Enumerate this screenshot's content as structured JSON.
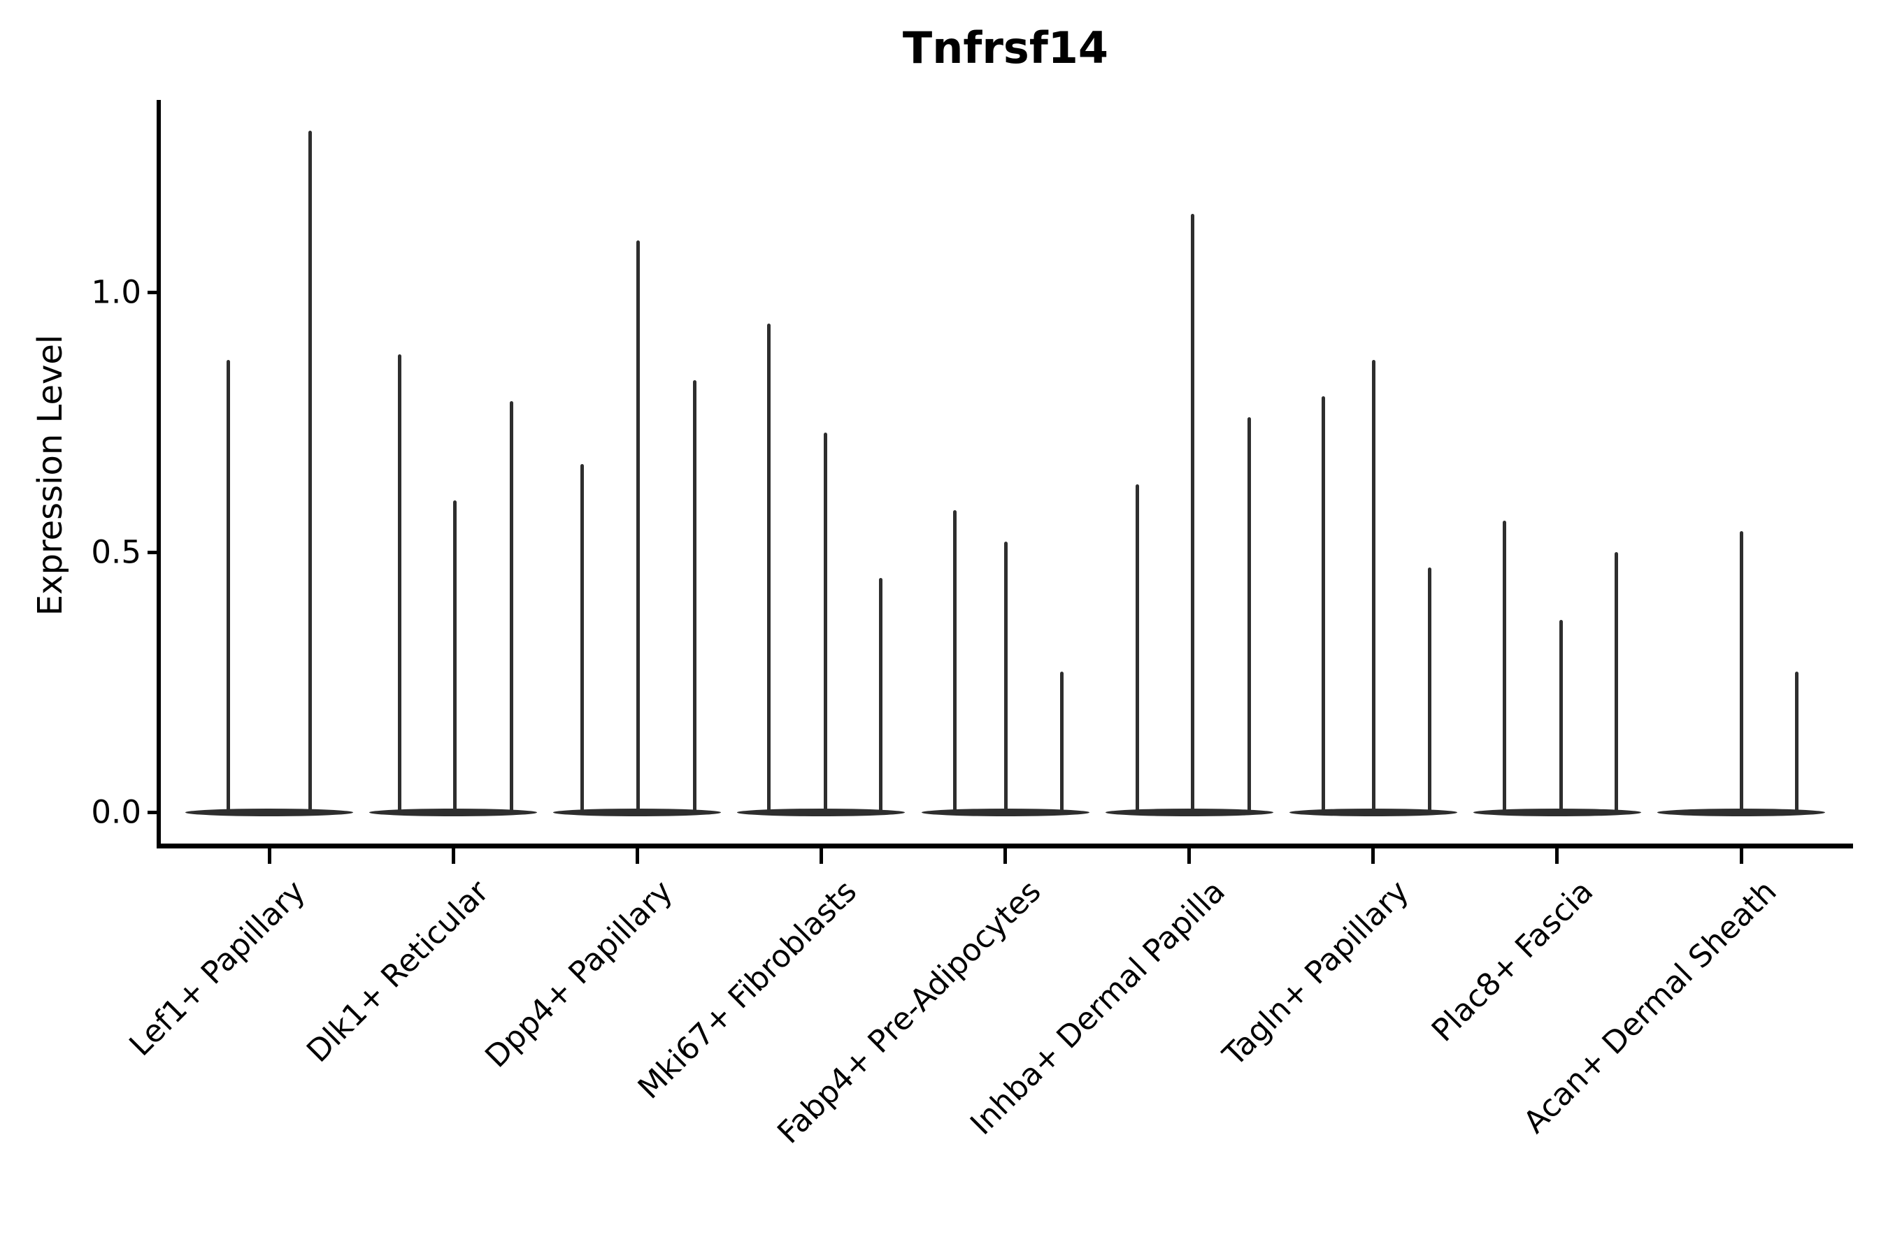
{
  "figure": {
    "title": "Tnfrsf14",
    "background_color": "#ffffff",
    "axis_color": "#000000",
    "violin_color": "#2e2e2e"
  },
  "chart_data": {
    "type": "violin",
    "title": "Tnfrsf14",
    "xlabel": "",
    "ylabel": "Expression Level",
    "ylim": [
      -0.065,
      1.37
    ],
    "grid": false,
    "legend": "none",
    "yticks": [
      {
        "label": "0.0",
        "value": 0.0
      },
      {
        "label": "0.5",
        "value": 0.5
      },
      {
        "label": "1.0",
        "value": 1.0
      }
    ],
    "categories": [
      "Lef1+ Papillary",
      "Dlk1+ Reticular",
      "Dpp4+ Papillary",
      "Mki67+ Fibroblasts",
      "Fabp4+ Pre-Adipocytes",
      "Inhba+ Dermal Papilla",
      "Tagln+ Papillary",
      "Plac8+ Fascia",
      "Acan+ Dermal Sheath"
    ],
    "series": [
      {
        "category": "Lef1+ Papillary",
        "base_value": 0.0,
        "spikes": [
          {
            "offset": -59,
            "value": 0.87
          },
          {
            "offset": 58,
            "value": 1.31
          }
        ]
      },
      {
        "category": "Dlk1+ Reticular",
        "base_value": 0.0,
        "spikes": [
          {
            "offset": -77,
            "value": 0.88
          },
          {
            "offset": 2,
            "value": 0.6
          },
          {
            "offset": 83,
            "value": 0.79
          }
        ]
      },
      {
        "category": "Dpp4+ Papillary",
        "base_value": 0.0,
        "spikes": [
          {
            "offset": -79,
            "value": 0.67
          },
          {
            "offset": 1,
            "value": 1.1
          },
          {
            "offset": 82,
            "value": 0.83
          }
        ]
      },
      {
        "category": "Mki67+ Fibroblasts",
        "base_value": 0.0,
        "spikes": [
          {
            "offset": -75,
            "value": 0.94
          },
          {
            "offset": 6,
            "value": 0.73
          },
          {
            "offset": 85,
            "value": 0.45
          }
        ]
      },
      {
        "category": "Fabp4+ Pre-Adipocytes",
        "base_value": 0.0,
        "spikes": [
          {
            "offset": -72,
            "value": 0.58
          },
          {
            "offset": 1,
            "value": 0.52
          },
          {
            "offset": 81,
            "value": 0.27
          }
        ]
      },
      {
        "category": "Inhba+ Dermal Papilla",
        "base_value": 0.0,
        "spikes": [
          {
            "offset": -74,
            "value": 0.63
          },
          {
            "offset": 5,
            "value": 1.15
          },
          {
            "offset": 86,
            "value": 0.76
          }
        ]
      },
      {
        "category": "Tagln+ Papillary",
        "base_value": 0.0,
        "spikes": [
          {
            "offset": -71,
            "value": 0.8
          },
          {
            "offset": 1,
            "value": 0.87
          },
          {
            "offset": 81,
            "value": 0.47
          }
        ]
      },
      {
        "category": "Plac8+ Fascia",
        "base_value": 0.0,
        "spikes": [
          {
            "offset": -75,
            "value": 0.56
          },
          {
            "offset": 6,
            "value": 0.37
          },
          {
            "offset": 85,
            "value": 0.5
          }
        ]
      },
      {
        "category": "Acan+ Dermal Sheath",
        "base_value": 0.0,
        "spikes": [
          {
            "offset": 0,
            "value": 0.54
          },
          {
            "offset": 79,
            "value": 0.27
          }
        ]
      }
    ]
  }
}
